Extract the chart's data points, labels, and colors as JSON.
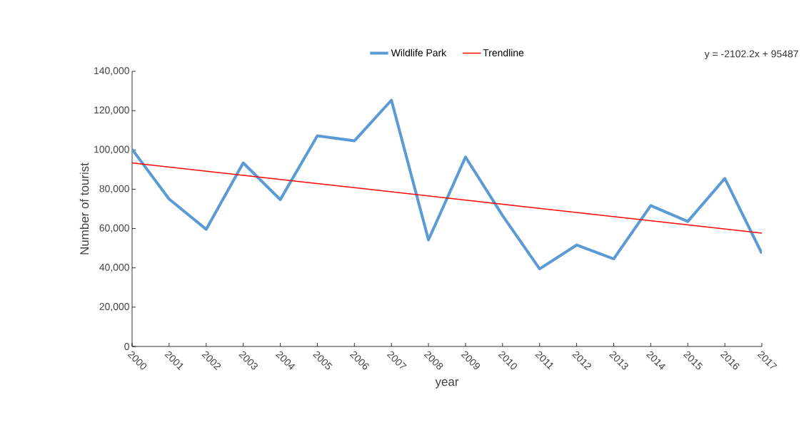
{
  "chart_data": {
    "type": "line",
    "xlabel": "year",
    "ylabel": "Number of tourist",
    "x": [
      2000,
      2001,
      2002,
      2003,
      2004,
      2005,
      2006,
      2007,
      2008,
      2009,
      2010,
      2011,
      2012,
      2013,
      2014,
      2015,
      2016,
      2017
    ],
    "series": [
      {
        "name": "Wildlife Park",
        "color": "#5b9bd5",
        "values": [
          100300,
          75000,
          59600,
          93400,
          74700,
          107200,
          104600,
          125300,
          54200,
          96400,
          66600,
          39500,
          51600,
          44600,
          71700,
          63600,
          85500,
          47300
        ]
      },
      {
        "name": "Trendline",
        "type": "line",
        "color": "#ff0000",
        "x": [
          2000,
          2017
        ],
        "values": [
          93385,
          57647
        ]
      }
    ],
    "xlim": [
      2000,
      2017
    ],
    "xticks": [
      2000,
      2001,
      2002,
      2003,
      2004,
      2005,
      2006,
      2007,
      2008,
      2009,
      2010,
      2011,
      2012,
      2013,
      2014,
      2015,
      2016,
      2017
    ],
    "ylim": [
      0,
      140000
    ],
    "yticks": [
      {
        "value": 0,
        "label": "0"
      },
      {
        "value": 20000,
        "label": "20,000"
      },
      {
        "value": 40000,
        "label": "40,000"
      },
      {
        "value": 60000,
        "label": "60,000"
      },
      {
        "value": 80000,
        "label": "80,000"
      },
      {
        "value": 100000,
        "label": "100,000"
      },
      {
        "value": 120000,
        "label": "120,000"
      },
      {
        "value": 140000,
        "label": "140,000"
      }
    ],
    "annotations": [
      "y = -2102.2x + 95487"
    ],
    "legend": "top",
    "grid": false,
    "marker": "none",
    "line_style": "solid"
  }
}
